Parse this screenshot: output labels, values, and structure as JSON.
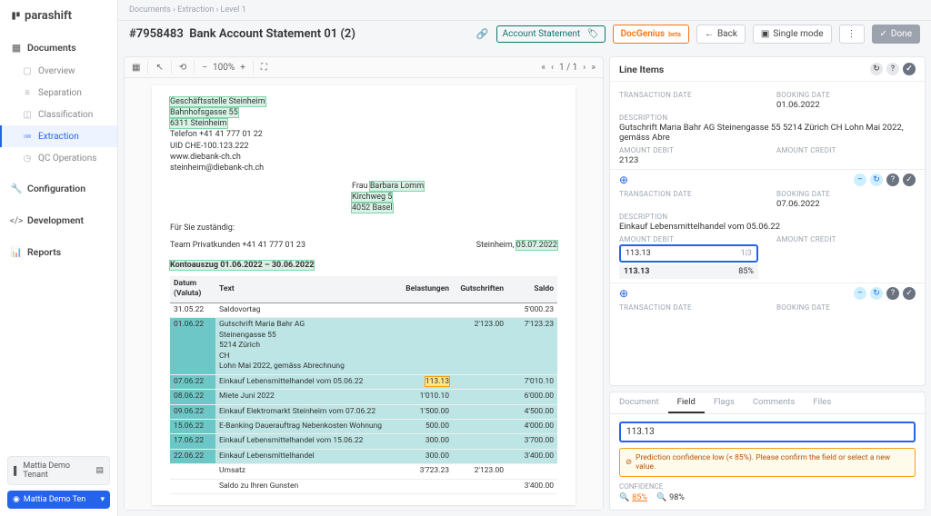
{
  "brand": "parashift",
  "breadcrumb": "Documents  ›  Extraction  ›  Level 1",
  "doc_id": "#7958483",
  "doc_title": "Bank Account Statement 01 (2)",
  "doc_type": "Account Statement",
  "btn_docgenius": "DocGenius",
  "btn_docgenius_badge": "beta",
  "btn_back": "Back",
  "btn_single": "Single mode",
  "btn_done": "Done",
  "nav": {
    "documents": "Documents",
    "overview": "Overview",
    "separation": "Separation",
    "classification": "Classification",
    "extraction": "Extraction",
    "qc": "QC Operations",
    "configuration": "Configuration",
    "development": "Development",
    "reports": "Reports"
  },
  "tenant": "Mattia Demo Tenant",
  "user": "Mattia Demo Ten",
  "viewer": {
    "zoom": "100%",
    "page": "1 / 1",
    "minus": "−",
    "plus": "+"
  },
  "sender": {
    "branch": "Geschäftsstelle Steinheim",
    "street": "Bahnhofsgasse 55",
    "city": "6311 Steinheim",
    "phone": "Telefon +41 41 777 01 22",
    "uid": "UID CHE-100.123.222",
    "web": "www.diebank-ch.ch",
    "email": "steinheim@diebank-ch.ch"
  },
  "recipient": {
    "name": "Frau Barbara Lomm",
    "street": "Kirchweg 5",
    "city": "4052 Basel"
  },
  "contact_label": "Für Sie zuständig:",
  "contact_team": "Team Privatkunden +41 41 777 01 23",
  "place": "Steinheim,",
  "date": "05.07.2022",
  "stmt_title": "Kontoauszug 01.06.2022 – 30.06.2022",
  "cols": {
    "date": "Datum (Valuta)",
    "text": "Text",
    "debit": "Belastungen",
    "credit": "Gutschriften",
    "balance": "Saldo"
  },
  "rows": [
    {
      "d": "31.05.22",
      "t": "Saldovortag",
      "deb": "",
      "cre": "",
      "bal": "5'000.23"
    },
    {
      "d": "01.06.22",
      "t": "Gutschrift Maria Bahr AG\nSteinengasse 55\n5214 Zürich\nCH\nLohn Mai 2022, gemäss Abrechnung",
      "deb": "",
      "cre": "2'123.00",
      "bal": "7'123.23",
      "hl": true
    },
    {
      "d": "07.06.22",
      "t": "Einkauf Lebensmittelhandel vom 05.06.22",
      "deb": "113.13",
      "cre": "",
      "bal": "7'010.10",
      "hl": true,
      "yellow": true
    },
    {
      "d": "08.06.22",
      "t": "Miete Juni 2022",
      "deb": "1'010.10",
      "cre": "",
      "bal": "6'000.00",
      "hl": true
    },
    {
      "d": "09.06.22",
      "t": "Einkauf Elektromarkt Steinheim vom 07.06.22",
      "deb": "1'500.00",
      "cre": "",
      "bal": "4'500.00",
      "hl": true
    },
    {
      "d": "15.06.22",
      "t": "E-Banking Dauerauftrag Nebenkosten Wohnung",
      "deb": "500.00",
      "cre": "",
      "bal": "4'000.00",
      "hl": true
    },
    {
      "d": "17.06.22",
      "t": "Einkauf Lebensmittelhandel vom 15.06.22",
      "deb": "300.00",
      "cre": "",
      "bal": "3'700.00",
      "hl": true
    },
    {
      "d": "22.06.22",
      "t": "Einkauf Lebensmittelhandel",
      "deb": "300.00",
      "cre": "",
      "bal": "3'400.00",
      "hl": true
    },
    {
      "d": "",
      "t": "Umsatz",
      "deb": "3'723.23",
      "cre": "2'123.00",
      "bal": ""
    },
    {
      "d": "",
      "t": "Saldo zu Ihren Gunsten",
      "deb": "",
      "cre": "",
      "bal": "3'400.00"
    }
  ],
  "panel": {
    "title": "Line Items",
    "labels": {
      "trx": "TRANSACTION DATE",
      "book": "BOOKING DATE",
      "desc": "DESCRIPTION",
      "deb": "AMOUNT DEBIT",
      "cre": "AMOUNT CREDIT"
    },
    "items": [
      {
        "trx": "",
        "book": "01.06.2022",
        "desc": "Gutschrift Maria Bahr AG Steinengasse 55 5214 Zürich CH Lohn Mai 2022, gemäss Abre",
        "deb": "2123",
        "cre": ""
      },
      {
        "trx": "",
        "book": "07.06.2022",
        "desc": "Einkauf Lebensmittelhandel vom 05.06.22",
        "deb": "113.13",
        "cre": "",
        "active": true
      }
    ],
    "input_val": "113.13",
    "input_hint": "1|3",
    "suggest_val": "113.13",
    "suggest_pct": "85%"
  },
  "detail": {
    "tabs": {
      "document": "Document",
      "field": "Field",
      "flags": "Flags",
      "comments": "Comments",
      "files": "Files"
    },
    "value": "113.13",
    "warn": "Prediction confidence low (< 85%). Please confirm the field or select a new value.",
    "conf_label": "Confidence",
    "conf_low": "85%",
    "conf_high": "98%"
  }
}
